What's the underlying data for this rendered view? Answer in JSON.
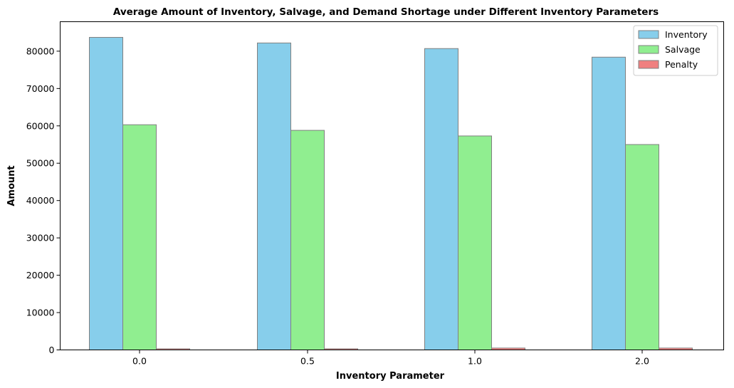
{
  "chart_data": {
    "type": "bar",
    "title": "Average Amount of Inventory, Salvage, and Demand Shortage under Different Inventory Parameters",
    "xlabel": "Inventory Parameter",
    "ylabel": "Amount",
    "categories": [
      "0.0",
      "0.5",
      "1.0",
      "2.0"
    ],
    "series": [
      {
        "name": "Inventory",
        "color": "#87ceeb",
        "values": [
          83700,
          82200,
          80700,
          78400
        ]
      },
      {
        "name": "Salvage",
        "color": "#90ee90",
        "values": [
          60300,
          58800,
          57300,
          55000
        ]
      },
      {
        "name": "Penalty",
        "color": "#f08080",
        "values": [
          300,
          300,
          500,
          500
        ]
      }
    ],
    "ylim": [
      0,
      87890
    ],
    "yticks": [
      0,
      10000,
      20000,
      30000,
      40000,
      50000,
      60000,
      70000,
      80000
    ],
    "bar_edge_color": "#808080",
    "grid": false,
    "legend_position": "top-right"
  }
}
